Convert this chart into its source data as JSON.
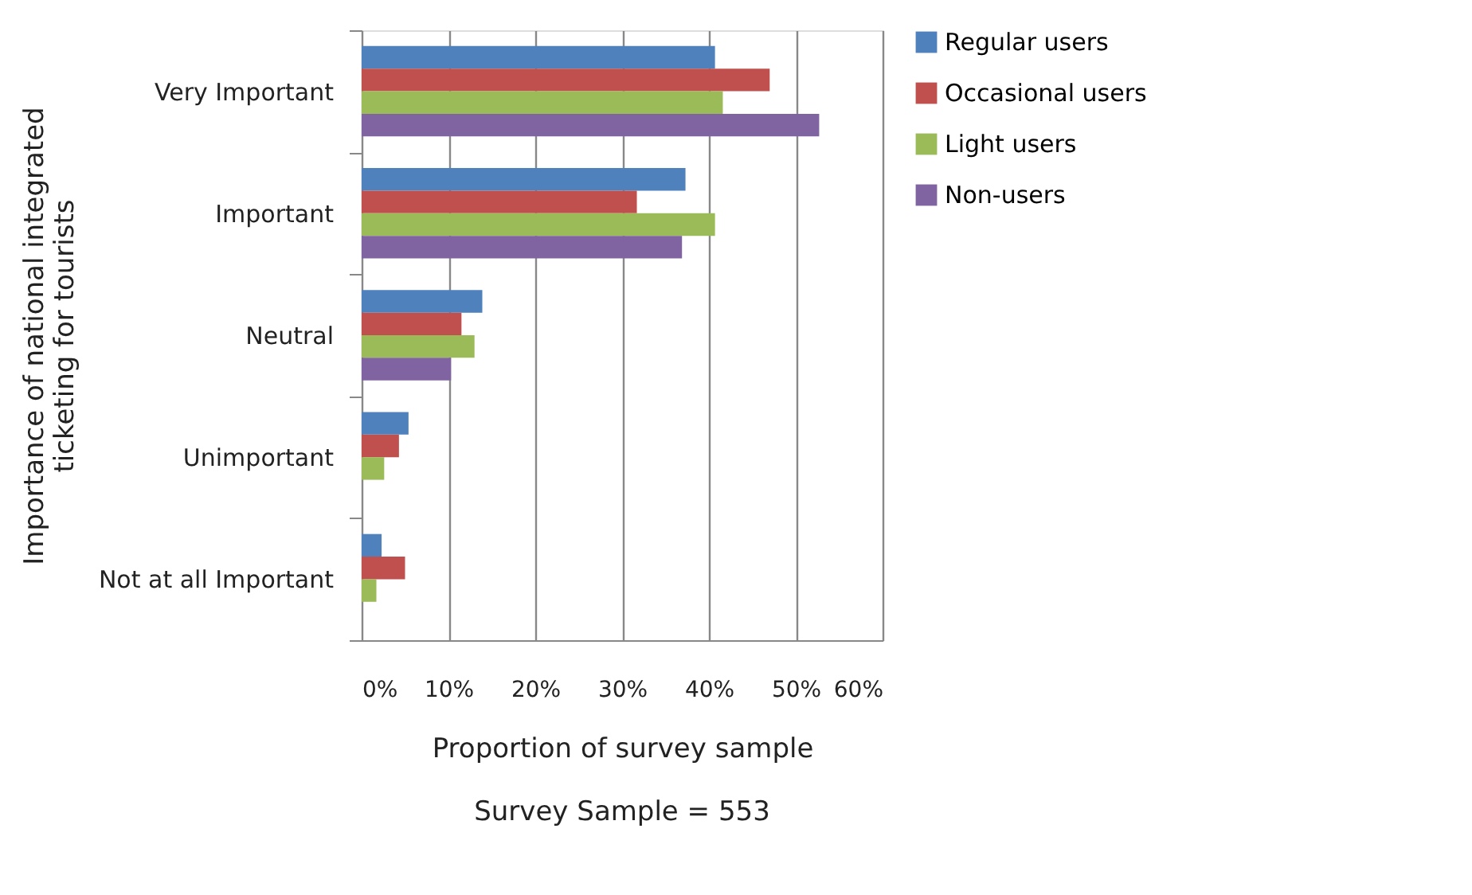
{
  "chart_data": {
    "type": "bar",
    "orientation": "horizontal",
    "categories": [
      "Very Important",
      "Important",
      "Neutral",
      "Unimportant",
      "Not at all Important"
    ],
    "series": [
      {
        "name": "Regular users",
        "color": "#4f81bd",
        "values": [
          40.7,
          37.3,
          13.9,
          5.4,
          2.3
        ]
      },
      {
        "name": "Occasional users",
        "color": "#c0504d",
        "values": [
          47.0,
          31.7,
          11.5,
          4.3,
          5.0
        ]
      },
      {
        "name": "Light users",
        "color": "#9bbb59",
        "values": [
          41.6,
          40.7,
          13.0,
          2.6,
          1.7
        ]
      },
      {
        "name": "Non-users",
        "color": "#8064a2",
        "values": [
          52.7,
          36.9,
          10.3,
          0,
          0
        ]
      }
    ],
    "xlabel": "Proportion of survey sample",
    "ylabel": "Importance of national integrated ticketing for tourists",
    "xlim": [
      0,
      60
    ],
    "xticks": [
      {
        "value": 0,
        "label": "0%"
      },
      {
        "value": 10,
        "label": "10%"
      },
      {
        "value": 20,
        "label": "20%"
      },
      {
        "value": 30,
        "label": "30%"
      },
      {
        "value": 40,
        "label": "40%"
      },
      {
        "value": 50,
        "label": "50%"
      },
      {
        "value": 60,
        "label": "60%"
      }
    ],
    "grid": "x",
    "legend": "top right",
    "annotations": [
      "Survey Sample = 553"
    ]
  }
}
